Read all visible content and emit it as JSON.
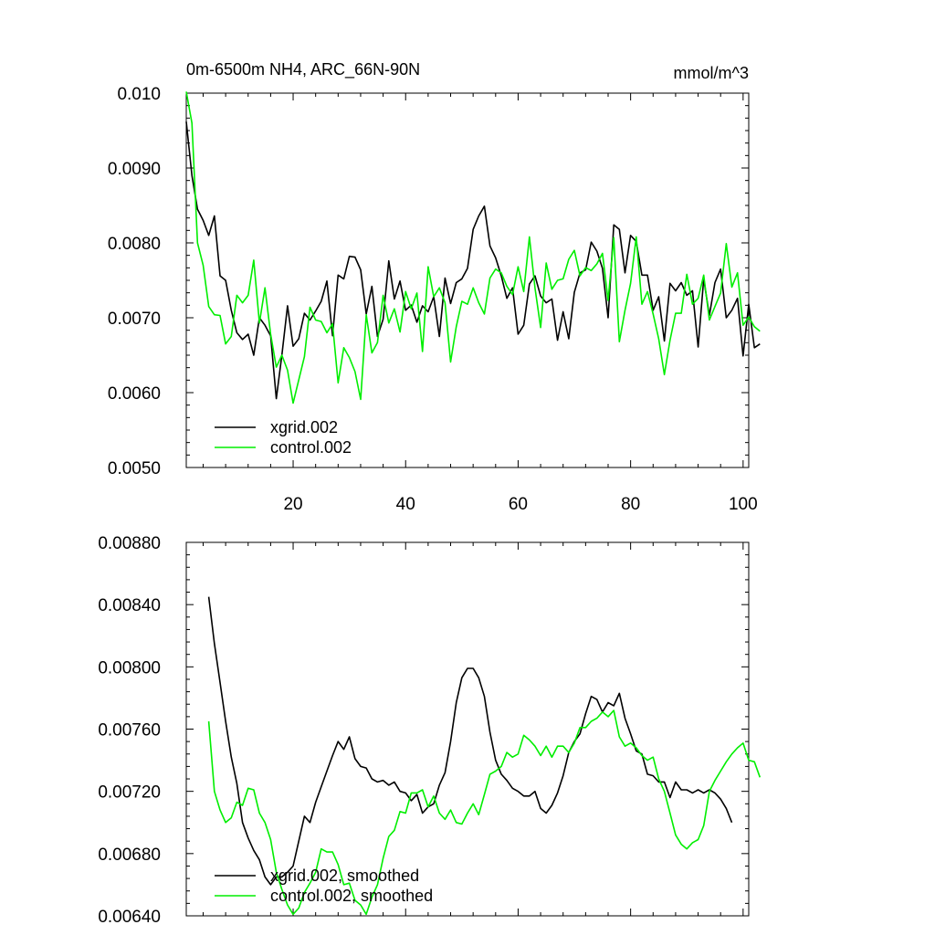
{
  "colors": {
    "xgrid": "#000000",
    "control": "#00ee00"
  },
  "chart_data": [
    {
      "type": "line",
      "title": "0m-6500m NH4, ARC_66N-90N",
      "units": "mmol/m^3",
      "xlabel": "",
      "ylabel": "",
      "xlim": [
        1,
        101
      ],
      "ylim": [
        0.005,
        0.01
      ],
      "xticks": [
        20,
        40,
        60,
        80,
        100
      ],
      "xtick_labels": [
        "20",
        "40",
        "60",
        "80",
        "100"
      ],
      "yticks": [
        0.005,
        0.006,
        0.007,
        0.008,
        0.009,
        0.01
      ],
      "ytick_labels": [
        "0.0050",
        "0.0060",
        "0.0070",
        "0.0080",
        "0.0090",
        "0.010"
      ],
      "legend": "bottom-left",
      "series": [
        {
          "name": "xgrid.002",
          "color": "black",
          "x_start": 1,
          "values": [
            0.00962,
            0.0089,
            0.00845,
            0.0083,
            0.0081,
            0.00836,
            0.00756,
            0.0075,
            0.0071,
            0.0068,
            0.00671,
            0.00678,
            0.0065,
            0.007,
            0.0069,
            0.00676,
            0.00592,
            0.0065,
            0.00716,
            0.00662,
            0.00672,
            0.00706,
            0.00697,
            0.00709,
            0.00722,
            0.00749,
            0.00676,
            0.00757,
            0.00752,
            0.00782,
            0.00781,
            0.00764,
            0.00705,
            0.00742,
            0.00675,
            0.00698,
            0.00776,
            0.00725,
            0.00749,
            0.0071,
            0.00717,
            0.00694,
            0.00716,
            0.00708,
            0.00728,
            0.00675,
            0.00753,
            0.00719,
            0.00747,
            0.00752,
            0.00766,
            0.00818,
            0.00836,
            0.00849,
            0.00796,
            0.0078,
            0.00756,
            0.00726,
            0.0074,
            0.00678,
            0.0069,
            0.00745,
            0.00756,
            0.00729,
            0.0072,
            0.00725,
            0.0067,
            0.00708,
            0.00672,
            0.00734,
            0.0076,
            0.00764,
            0.00801,
            0.00789,
            0.00766,
            0.007,
            0.00824,
            0.00818,
            0.0076,
            0.0081,
            0.00802,
            0.00757,
            0.00757,
            0.0071,
            0.00728,
            0.00669,
            0.00746,
            0.00736,
            0.00747,
            0.0073,
            0.00736,
            0.00661,
            0.00752,
            0.00703,
            0.00747,
            0.00765,
            0.007,
            0.0071,
            0.00726,
            0.00649,
            0.00718,
            0.0066,
            0.00665
          ]
        },
        {
          "name": "control.002",
          "color": "green",
          "x_start": 1,
          "values": [
            0.01002,
            0.0096,
            0.008,
            0.0077,
            0.00715,
            0.00704,
            0.00703,
            0.00665,
            0.00675,
            0.0073,
            0.0072,
            0.0073,
            0.00777,
            0.00693,
            0.0074,
            0.00678,
            0.00634,
            0.0065,
            0.0063,
            0.00586,
            0.00617,
            0.00648,
            0.00714,
            0.00697,
            0.00695,
            0.0068,
            0.00692,
            0.00613,
            0.0066,
            0.00647,
            0.00628,
            0.00591,
            0.00704,
            0.00653,
            0.00667,
            0.0073,
            0.00693,
            0.00712,
            0.00681,
            0.00735,
            0.00712,
            0.00733,
            0.00655,
            0.00768,
            0.00728,
            0.0074,
            0.0072,
            0.00641,
            0.00688,
            0.00722,
            0.00718,
            0.0074,
            0.0072,
            0.00705,
            0.00753,
            0.00765,
            0.0076,
            0.00742,
            0.00731,
            0.00768,
            0.00735,
            0.00808,
            0.0074,
            0.00687,
            0.00773,
            0.00738,
            0.0075,
            0.00752,
            0.00778,
            0.0079,
            0.00756,
            0.00767,
            0.00763,
            0.00772,
            0.00786,
            0.00723,
            0.00807,
            0.00668,
            0.0071,
            0.00746,
            0.00808,
            0.00718,
            0.00735,
            0.00705,
            0.00672,
            0.00624,
            0.0067,
            0.00706,
            0.00706,
            0.00758,
            0.00718,
            0.00726,
            0.00757,
            0.00697,
            0.00715,
            0.00733,
            0.00799,
            0.00741,
            0.0076,
            0.0069,
            0.00701,
            0.00688,
            0.00682
          ]
        }
      ]
    },
    {
      "type": "line",
      "title": "",
      "xlabel": "",
      "ylabel": "",
      "xlim": [
        1,
        101
      ],
      "ylim": [
        0.0064,
        0.0088
      ],
      "xticks": [
        20,
        40,
        60,
        80,
        100
      ],
      "yticks": [
        0.0064,
        0.0068,
        0.0072,
        0.0076,
        0.008,
        0.0084,
        0.0088
      ],
      "ytick_labels": [
        "0.00640",
        "0.00680",
        "0.00720",
        "0.00760",
        "0.00800",
        "0.00840",
        "0.00880"
      ],
      "legend": "bottom-left",
      "series": [
        {
          "name": "xgrid.002, smoothed",
          "color": "black",
          "x_start": 5,
          "values": [
            0.00845,
            0.00815,
            0.0079,
            0.00765,
            0.00742,
            0.00725,
            0.007,
            0.0069,
            0.00682,
            0.00676,
            0.00665,
            0.0066,
            0.00665,
            0.00665,
            0.00668,
            0.00672,
            0.00688,
            0.00704,
            0.007,
            0.00713,
            0.00723,
            0.00733,
            0.00743,
            0.00752,
            0.00747,
            0.00755,
            0.00741,
            0.00736,
            0.00735,
            0.00728,
            0.00726,
            0.00727,
            0.00724,
            0.00726,
            0.0072,
            0.00719,
            0.00714,
            0.00718,
            0.00706,
            0.0071,
            0.00712,
            0.00724,
            0.00732,
            0.00752,
            0.00777,
            0.00793,
            0.00799,
            0.00799,
            0.00793,
            0.00781,
            0.00758,
            0.0074,
            0.00731,
            0.00727,
            0.00722,
            0.0072,
            0.00717,
            0.00717,
            0.0072,
            0.00709,
            0.00706,
            0.00711,
            0.00719,
            0.0073,
            0.00745,
            0.00752,
            0.00757,
            0.0077,
            0.00781,
            0.00779,
            0.00771,
            0.00777,
            0.00775,
            0.00783,
            0.00767,
            0.00757,
            0.00746,
            0.00744,
            0.00731,
            0.0073,
            0.00726,
            0.00726,
            0.00716,
            0.00726,
            0.00721,
            0.00721,
            0.00719,
            0.00721,
            0.00719,
            0.00721,
            0.00719,
            0.00715,
            0.00709,
            0.007
          ]
        },
        {
          "name": "control.002, smoothed",
          "color": "green",
          "x_start": 5,
          "values": [
            0.00765,
            0.0072,
            0.00708,
            0.007,
            0.00703,
            0.00713,
            0.00711,
            0.00722,
            0.00721,
            0.00706,
            0.007,
            0.00689,
            0.00668,
            0.00657,
            0.00647,
            0.00641,
            0.00645,
            0.00655,
            0.00661,
            0.00668,
            0.00683,
            0.00681,
            0.00681,
            0.00673,
            0.0066,
            0.00661,
            0.0065,
            0.00647,
            0.00641,
            0.00652,
            0.0066,
            0.00677,
            0.00691,
            0.00695,
            0.00707,
            0.00706,
            0.00719,
            0.00719,
            0.00721,
            0.0071,
            0.00717,
            0.00706,
            0.00702,
            0.00708,
            0.007,
            0.00699,
            0.00706,
            0.00712,
            0.00705,
            0.00718,
            0.00731,
            0.00733,
            0.00736,
            0.00745,
            0.00742,
            0.00744,
            0.00756,
            0.00753,
            0.00749,
            0.00743,
            0.00749,
            0.00742,
            0.00749,
            0.00749,
            0.00745,
            0.00751,
            0.00761,
            0.00761,
            0.00765,
            0.00767,
            0.00771,
            0.00768,
            0.00772,
            0.00755,
            0.00749,
            0.00751,
            0.00748,
            0.00743,
            0.0074,
            0.00742,
            0.00728,
            0.0072,
            0.00706,
            0.00692,
            0.00686,
            0.00683,
            0.00687,
            0.00689,
            0.00698,
            0.0072,
            0.00727,
            0.00733,
            0.00739,
            0.00744,
            0.00748,
            0.00751,
            0.0074,
            0.00739,
            0.00729
          ]
        }
      ]
    }
  ]
}
